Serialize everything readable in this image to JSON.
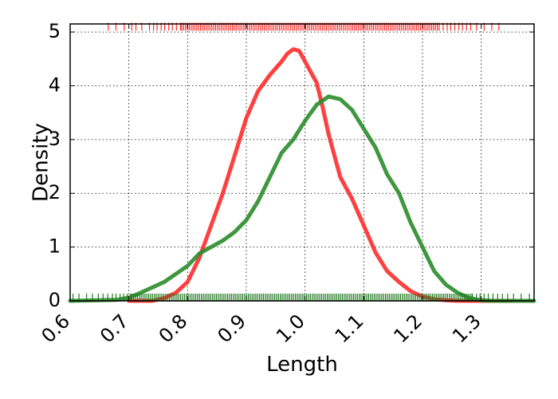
{
  "chart_data": {
    "type": "line",
    "title": "",
    "xlabel": "Length",
    "ylabel": "Density",
    "xlim": [
      0.6,
      1.39
    ],
    "ylim": [
      0,
      5.15
    ],
    "grid": true,
    "xticks": [
      0.6,
      0.7,
      0.8,
      0.9,
      1.0,
      1.1,
      1.2,
      1.3
    ],
    "xtick_labels": [
      "0.6",
      "0.7",
      "0.8",
      "0.9",
      "1.0",
      "1.1",
      "1.2",
      "1.3"
    ],
    "yticks": [
      0,
      1,
      2,
      3,
      4,
      5
    ],
    "ytick_labels": [
      "0",
      "1",
      "2",
      "3",
      "4",
      "5"
    ],
    "series": [
      {
        "color": "#ff2b2b",
        "x": [
          0.7,
          0.74,
          0.76,
          0.78,
          0.8,
          0.82,
          0.84,
          0.86,
          0.88,
          0.9,
          0.92,
          0.94,
          0.96,
          0.97,
          0.98,
          0.99,
          1.0,
          1.02,
          1.03,
          1.04,
          1.06,
          1.08,
          1.1,
          1.12,
          1.14,
          1.16,
          1.18,
          1.2,
          1.22,
          1.24,
          1.26,
          1.3,
          1.35
        ],
        "y": [
          0.0,
          0.0,
          0.05,
          0.15,
          0.35,
          0.8,
          1.4,
          2.0,
          2.7,
          3.4,
          3.9,
          4.2,
          4.45,
          4.6,
          4.68,
          4.65,
          4.45,
          4.05,
          3.6,
          3.1,
          2.3,
          1.9,
          1.4,
          0.9,
          0.55,
          0.35,
          0.18,
          0.08,
          0.03,
          0.01,
          0.0,
          0.0,
          0.0
        ]
      },
      {
        "color": "#2a8c2a",
        "x": [
          0.6,
          0.68,
          0.7,
          0.72,
          0.74,
          0.76,
          0.78,
          0.8,
          0.82,
          0.84,
          0.86,
          0.88,
          0.9,
          0.92,
          0.94,
          0.96,
          0.98,
          1.0,
          1.02,
          1.04,
          1.06,
          1.08,
          1.1,
          1.12,
          1.14,
          1.16,
          1.18,
          1.2,
          1.22,
          1.24,
          1.26,
          1.28,
          1.3,
          1.32,
          1.39
        ],
        "y": [
          0.0,
          0.02,
          0.06,
          0.15,
          0.25,
          0.35,
          0.5,
          0.65,
          0.88,
          1.0,
          1.12,
          1.28,
          1.5,
          1.85,
          2.3,
          2.75,
          3.0,
          3.35,
          3.65,
          3.8,
          3.75,
          3.55,
          3.2,
          2.85,
          2.35,
          2.0,
          1.45,
          1.0,
          0.55,
          0.3,
          0.15,
          0.05,
          0.01,
          0.0,
          0.0
        ]
      }
    ],
    "rug_top": {
      "color": "#ff2b2b",
      "y": 5.1,
      "x": [
        0.665,
        0.678,
        0.692,
        0.705,
        0.712,
        0.722,
        0.735,
        0.742,
        0.748,
        0.755,
        0.761,
        0.768,
        0.774,
        0.781,
        0.788,
        1.235,
        1.242,
        1.248,
        1.255,
        1.262,
        1.268,
        1.275,
        1.282,
        1.292,
        1.305,
        1.318,
        1.33
      ],
      "dense_range": [
        0.79,
        1.23
      ]
    },
    "rug_bottom": {
      "color": "#1f7a1f",
      "y": 0.06,
      "x": [
        0.605,
        0.615,
        0.628,
        0.638,
        0.648,
        0.656,
        0.664,
        0.672,
        0.678,
        0.685,
        0.691,
        0.697,
        0.703,
        1.285,
        1.292,
        1.298,
        1.305,
        1.312,
        1.32,
        1.328,
        1.336,
        1.345,
        1.355,
        1.368,
        1.382
      ],
      "dense_range": [
        0.705,
        1.285
      ]
    }
  }
}
